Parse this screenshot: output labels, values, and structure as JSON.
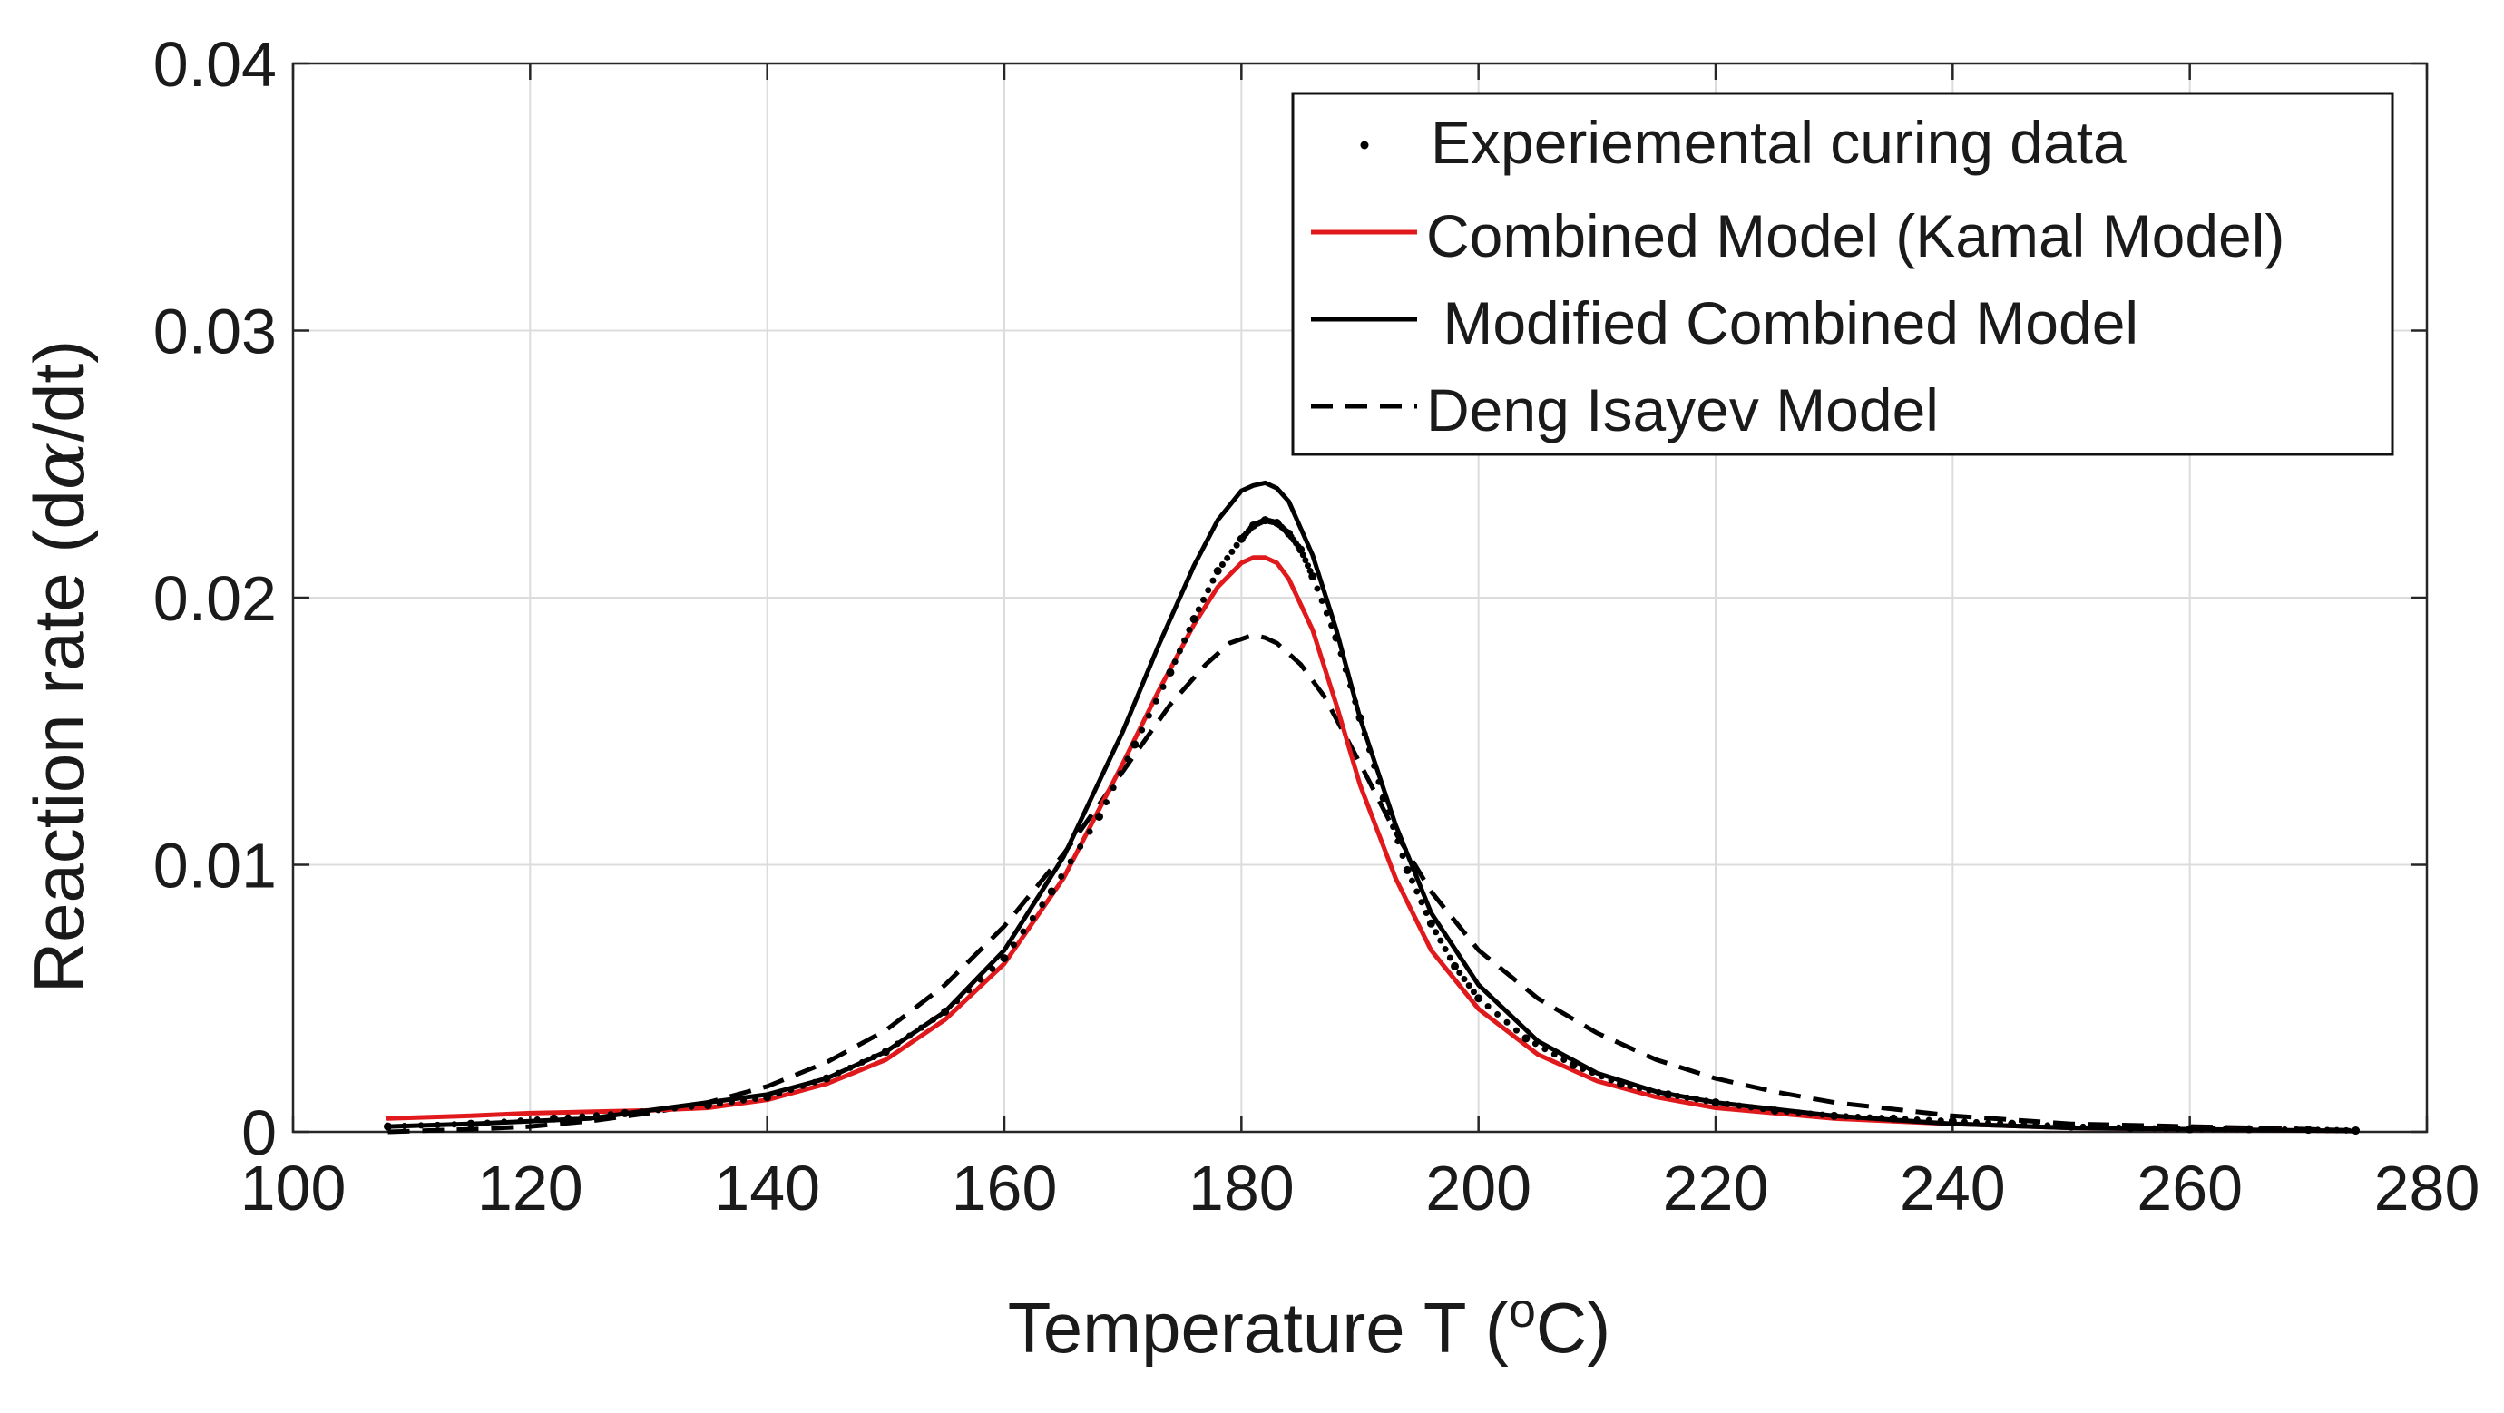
{
  "chart_data": {
    "type": "line",
    "title": "",
    "xlabel": "Temperature T (",
    "xlabel_unit_sup": "o",
    "xlabel_unit_tail": "C)",
    "ylabel": "Reaction rate  (d",
    "ylabel_greek": "α",
    "ylabel_tail": "/dt)",
    "xlim": [
      100,
      280
    ],
    "ylim": [
      0,
      0.04
    ],
    "xticks": [
      100,
      120,
      140,
      160,
      180,
      200,
      220,
      240,
      260,
      280
    ],
    "xtick_labels": [
      "100",
      "120",
      "140",
      "160",
      "180",
      "200",
      "220",
      "240",
      "260",
      "280"
    ],
    "yticks": [
      0,
      0.01,
      0.02,
      0.03,
      0.04
    ],
    "ytick_labels": [
      "0",
      "0.01",
      "0.02",
      "0.03",
      "0.04"
    ],
    "grid": true,
    "legend_position": "top-right",
    "series": [
      {
        "name": "Experiemental curing data",
        "style": "dots",
        "color": "#000000",
        "x": [
          108,
          115,
          122,
          128,
          135,
          140,
          145,
          150,
          155,
          160,
          164,
          168,
          171,
          174,
          176,
          178,
          180,
          181,
          182,
          183,
          184,
          185,
          186,
          188,
          190,
          192,
          194,
          196,
          198,
          200,
          204,
          208,
          212,
          216,
          220,
          225,
          230,
          235,
          240,
          245,
          250,
          255,
          260,
          265,
          270,
          274
        ],
        "y": [
          0.0002,
          0.0003,
          0.0005,
          0.0007,
          0.001,
          0.0013,
          0.002,
          0.003,
          0.0045,
          0.0065,
          0.009,
          0.0118,
          0.0145,
          0.0172,
          0.0192,
          0.021,
          0.0222,
          0.0227,
          0.0229,
          0.0228,
          0.0224,
          0.0218,
          0.0208,
          0.0185,
          0.0155,
          0.0125,
          0.0098,
          0.0078,
          0.0062,
          0.005,
          0.0035,
          0.0025,
          0.0018,
          0.0014,
          0.0011,
          0.0008,
          0.0006,
          0.0005,
          0.0004,
          0.0003,
          0.0002,
          0.00015,
          0.0001,
          0.0001,
          8e-05,
          5e-05
        ]
      },
      {
        "name": "Combined Model (Kamal Model)",
        "style": "solid",
        "color": "#e0191c",
        "x": [
          108,
          115,
          120,
          125,
          130,
          135,
          140,
          145,
          150,
          155,
          160,
          165,
          170,
          173,
          176,
          178,
          180,
          181,
          182,
          183,
          184,
          186,
          188,
          190,
          193,
          196,
          200,
          205,
          210,
          215,
          220,
          230,
          240,
          250,
          260,
          270,
          274
        ],
        "y": [
          0.0005,
          0.0006,
          0.0007,
          0.00075,
          0.0008,
          0.0009,
          0.0012,
          0.0018,
          0.0027,
          0.0042,
          0.0063,
          0.0095,
          0.0138,
          0.0165,
          0.019,
          0.0204,
          0.0213,
          0.0215,
          0.0215,
          0.0213,
          0.0207,
          0.0188,
          0.016,
          0.013,
          0.0095,
          0.0068,
          0.0046,
          0.0029,
          0.0019,
          0.0013,
          0.0009,
          0.0005,
          0.0003,
          0.00015,
          0.0001,
          5e-05,
          3e-05
        ]
      },
      {
        "name": " Modified Combined Model",
        "style": "solid",
        "color": "#000000",
        "x": [
          108,
          115,
          120,
          125,
          130,
          135,
          140,
          145,
          150,
          155,
          160,
          165,
          170,
          173,
          176,
          178,
          180,
          181,
          182,
          183,
          184,
          186,
          188,
          190,
          193,
          196,
          200,
          205,
          210,
          215,
          220,
          230,
          240,
          250,
          260,
          270,
          274
        ],
        "y": [
          0.0002,
          0.0003,
          0.0004,
          0.0005,
          0.0008,
          0.0011,
          0.0014,
          0.002,
          0.003,
          0.0045,
          0.0068,
          0.0103,
          0.015,
          0.0182,
          0.0212,
          0.0229,
          0.024,
          0.0242,
          0.0243,
          0.0241,
          0.0236,
          0.0216,
          0.0188,
          0.0155,
          0.0115,
          0.0082,
          0.0055,
          0.0034,
          0.0022,
          0.0015,
          0.0011,
          0.0006,
          0.0003,
          0.00015,
          0.0001,
          5e-05,
          3e-05
        ]
      },
      {
        "name": "Deng Isayev Model",
        "style": "dashed",
        "color": "#000000",
        "x": [
          108,
          115,
          120,
          125,
          130,
          135,
          140,
          145,
          150,
          155,
          160,
          165,
          170,
          174,
          177,
          179,
          181,
          182,
          183,
          185,
          187,
          190,
          193,
          196,
          200,
          205,
          210,
          215,
          220,
          225,
          230,
          240,
          250,
          260,
          270,
          274
        ],
        "y": [
          0.0,
          0.0001,
          0.0002,
          0.0004,
          0.0007,
          0.0011,
          0.0017,
          0.0026,
          0.0038,
          0.0055,
          0.0077,
          0.0104,
          0.0135,
          0.016,
          0.0175,
          0.0183,
          0.0186,
          0.0185,
          0.0183,
          0.0175,
          0.0163,
          0.0138,
          0.0112,
          0.009,
          0.0068,
          0.005,
          0.0037,
          0.0027,
          0.002,
          0.0015,
          0.0011,
          0.0006,
          0.0003,
          0.0002,
          0.0001,
          5e-05
        ]
      }
    ]
  }
}
